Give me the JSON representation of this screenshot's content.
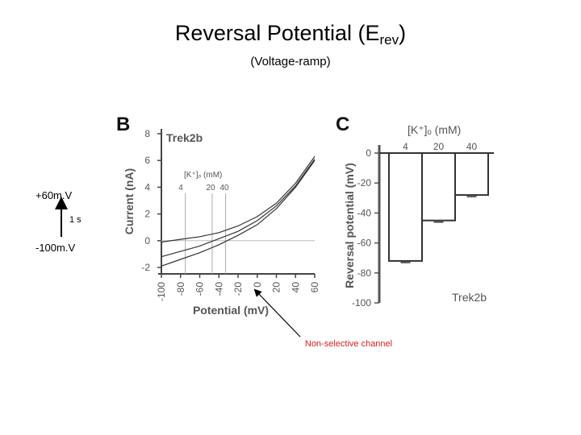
{
  "slide": {
    "title_main": "Reversal Potential (E",
    "title_sub": "rev",
    "title_close": ")",
    "subtitle": "(Voltage-ramp)",
    "ramp": {
      "top": "+60m.V",
      "time": "1 s",
      "bottom": "-100m.V"
    },
    "annotation": "Non-selective channel"
  },
  "chart_data": [
    {
      "panel": "B",
      "type": "line",
      "title": "Trek2b",
      "xlabel": "Potential (mV)",
      "ylabel": "Current (nA)",
      "xlim": [
        -100,
        60
      ],
      "ylim": [
        -2,
        8
      ],
      "xticks": [
        "-100",
        "-80",
        "-60",
        "-40",
        "-20",
        "0",
        "20",
        "40",
        "60"
      ],
      "yticks": [
        "-2",
        "0",
        "2",
        "4",
        "6",
        "8"
      ],
      "legend_title": "[K⁺]ₒ (mM)",
      "legend_values": [
        "4",
        "20",
        "40"
      ],
      "reversal_markers_mV": [
        -75,
        -47,
        -33
      ],
      "series": [
        {
          "name": "4",
          "x": [
            -100,
            -80,
            -60,
            -40,
            -20,
            0,
            20,
            40,
            60
          ],
          "y": [
            -1.9,
            -1.4,
            -0.9,
            -0.3,
            0.4,
            1.2,
            2.4,
            4.0,
            6.0
          ]
        },
        {
          "name": "20",
          "x": [
            -100,
            -80,
            -60,
            -40,
            -20,
            0,
            20,
            40,
            60
          ],
          "y": [
            -1.2,
            -0.8,
            -0.4,
            0.15,
            0.7,
            1.5,
            2.6,
            4.1,
            6.1
          ]
        },
        {
          "name": "40",
          "x": [
            -100,
            -80,
            -60,
            -40,
            -20,
            0,
            20,
            40,
            60
          ],
          "y": [
            -0.1,
            0.1,
            0.3,
            0.6,
            1.1,
            1.8,
            2.8,
            4.3,
            6.3
          ]
        }
      ]
    },
    {
      "panel": "C",
      "type": "bar",
      "title": "Trek2b",
      "xlabel": "[K⁺]ₒ (mM)",
      "ylabel": "Reversal potential (mV)",
      "ylim": [
        -100,
        0
      ],
      "yticks": [
        "0",
        "-20",
        "-40",
        "-60",
        "-80",
        "-100"
      ],
      "categories": [
        "4",
        "20",
        "40"
      ],
      "values": [
        -72,
        -45,
        -28
      ]
    }
  ]
}
